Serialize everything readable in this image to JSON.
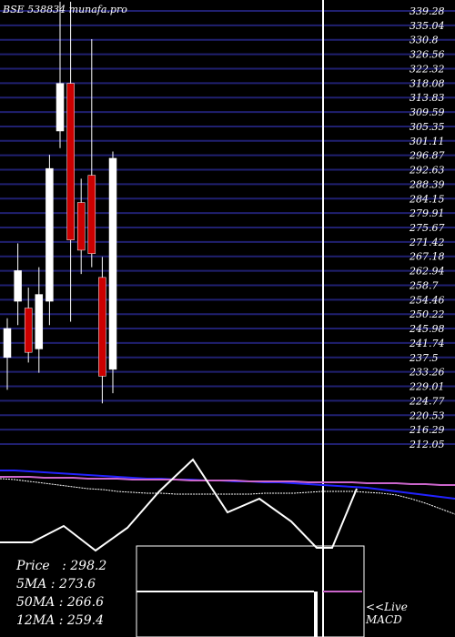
{
  "header": {
    "ticker": "BSE 538834",
    "site": "munafa.pro"
  },
  "chart_data": {
    "type": "candlestick",
    "price_levels": [
      "339.28",
      "335.04",
      "330.8",
      "326.56",
      "322.32",
      "318.08",
      "313.83",
      "309.59",
      "305.35",
      "301.11",
      "296.87",
      "292.63",
      "288.39",
      "284.15",
      "279.91",
      "275.67",
      "271.42",
      "267.18",
      "262.94",
      "258.7",
      "254.46",
      "250.22",
      "245.98",
      "241.74",
      "237.5",
      "233.26",
      "229.01",
      "224.77",
      "220.53",
      "216.29",
      "212.05"
    ],
    "ylim": [
      210,
      342
    ],
    "candles": [
      {
        "open": 237.5,
        "close": 246,
        "high": 249,
        "low": 228,
        "color": "white"
      },
      {
        "open": 254,
        "close": 263,
        "high": 271,
        "low": 247,
        "color": "white"
      },
      {
        "open": 252,
        "close": 239,
        "high": 258,
        "low": 236,
        "color": "red"
      },
      {
        "open": 240,
        "close": 256,
        "high": 264,
        "low": 233,
        "color": "white"
      },
      {
        "open": 254,
        "close": 293,
        "high": 297,
        "low": 247,
        "color": "white"
      },
      {
        "open": 304,
        "close": 318,
        "high": 342,
        "low": 299,
        "color": "white"
      },
      {
        "open": 318,
        "close": 272,
        "high": 342,
        "low": 248,
        "color": "red"
      },
      {
        "open": 283,
        "close": 269,
        "high": 290,
        "low": 262,
        "color": "red"
      },
      {
        "open": 291,
        "close": 268,
        "high": 331,
        "low": 264,
        "color": "red"
      },
      {
        "open": 261,
        "close": 232,
        "high": 267,
        "low": 224,
        "color": "red"
      },
      {
        "open": 234,
        "close": 296,
        "high": 298,
        "low": 227,
        "color": "white"
      }
    ],
    "ma_lines": [
      {
        "name": "5MA",
        "color": "#2222ff",
        "values": [
          517,
          517,
          518,
          519,
          520,
          521,
          522,
          523,
          524,
          525,
          526,
          526,
          527,
          527,
          528,
          528,
          529,
          529,
          530,
          530,
          531,
          532,
          533,
          534,
          535,
          536,
          538,
          540,
          542,
          544,
          546,
          548
        ]
      },
      {
        "name": "50MA",
        "color": "#cc66cc",
        "values": [
          524,
          524,
          524,
          525,
          525,
          525,
          526,
          526,
          526,
          527,
          527,
          527,
          527,
          528,
          528,
          528,
          528,
          529,
          529,
          529,
          529,
          530,
          530,
          530,
          530,
          531,
          531,
          531,
          532,
          532,
          533,
          533
        ]
      },
      {
        "name": "12MA",
        "color": "#ffffff",
        "values": [
          526,
          527,
          529,
          531,
          533,
          535,
          537,
          538,
          540,
          541,
          542,
          542,
          543,
          543,
          543,
          543,
          543,
          543,
          542,
          542,
          542,
          541,
          540,
          540,
          540,
          541,
          542,
          544,
          548,
          553,
          559,
          565
        ]
      }
    ],
    "macd_points": [
      [
        0,
        596
      ],
      [
        35,
        596
      ],
      [
        70,
        578
      ],
      [
        105,
        605
      ],
      [
        140,
        580
      ],
      [
        175,
        540
      ],
      [
        212,
        505
      ],
      [
        250,
        563
      ],
      [
        285,
        548
      ],
      [
        320,
        573
      ],
      [
        348,
        602
      ],
      [
        365,
        602
      ],
      [
        392,
        537
      ]
    ],
    "info": {
      "price_label": "Price",
      "price_value": "298.2",
      "ma5_label": "5MA",
      "ma5_value": "273.6",
      "ma50_label": "50MA",
      "ma50_value": "266.6",
      "ma12_label": "12MA",
      "ma12_value": "259.4"
    },
    "live_label": "<<Live",
    "macd_label": "MACD"
  }
}
